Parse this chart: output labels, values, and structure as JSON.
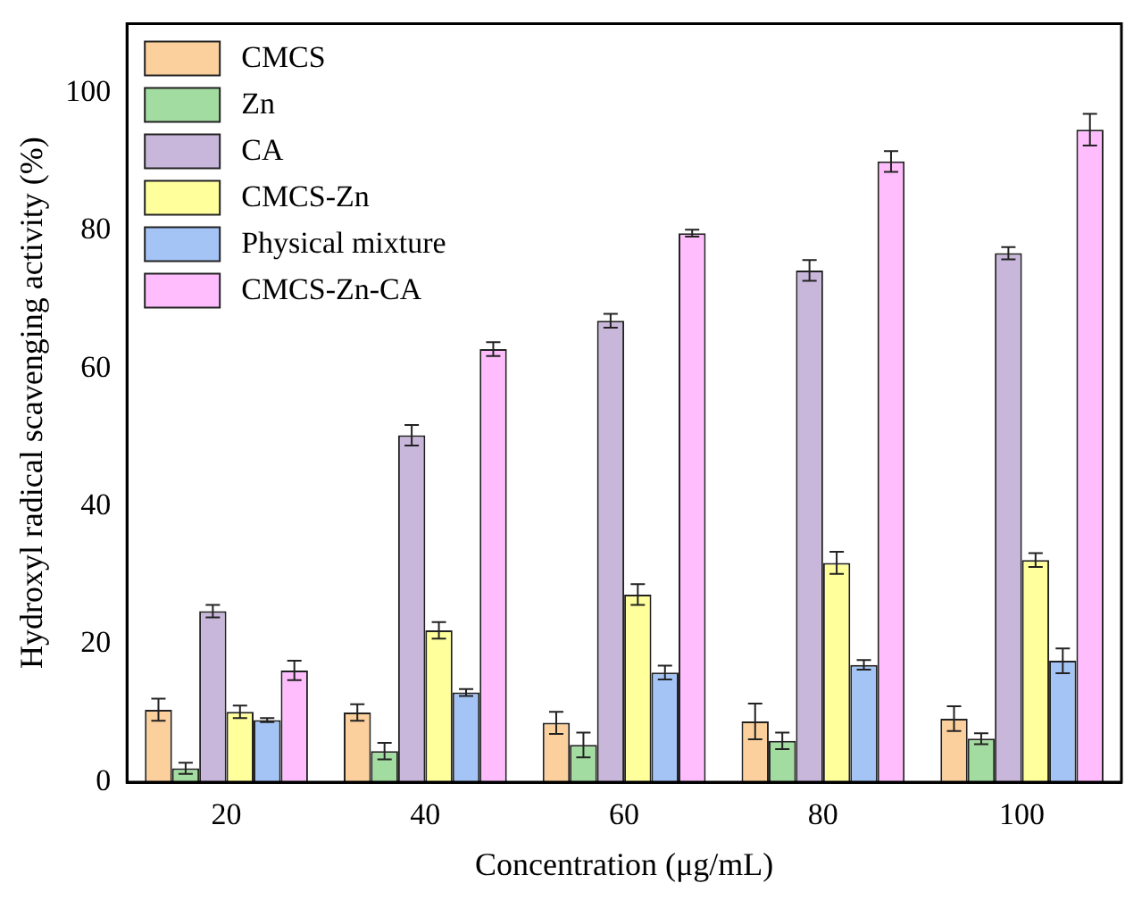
{
  "chart_data": {
    "type": "bar",
    "xlabel": "Concentration (μg/mL)",
    "ylabel": "Hydroxyl radical scavenging activity (%)",
    "categories": [
      "20",
      "40",
      "60",
      "80",
      "100"
    ],
    "series": [
      {
        "name": "CMCS",
        "color": "#fcd09c",
        "values": [
          10.5,
          10.1,
          8.6,
          8.8,
          9.2
        ],
        "errors": [
          1.6,
          1.2,
          1.6,
          2.6,
          1.8
        ]
      },
      {
        "name": "Zn",
        "color": "#a3dca0",
        "values": [
          2.0,
          4.5,
          5.4,
          6.0,
          6.3
        ],
        "errors": [
          0.8,
          1.2,
          1.8,
          1.2,
          0.8
        ]
      },
      {
        "name": "CA",
        "color": "#c9b7db",
        "values": [
          24.8,
          50.3,
          66.9,
          74.2,
          76.7
        ],
        "errors": [
          0.9,
          1.5,
          1.0,
          1.5,
          0.9
        ]
      },
      {
        "name": "CMCS-Zn",
        "color": "#ffff9c",
        "values": [
          10.2,
          22.0,
          27.2,
          31.8,
          32.2
        ],
        "errors": [
          0.9,
          1.2,
          1.5,
          1.6,
          1.0
        ]
      },
      {
        "name": "Physical mixture",
        "color": "#a4c4f6",
        "values": [
          9.0,
          13.0,
          15.9,
          17.0,
          17.6
        ],
        "errors": [
          0.3,
          0.5,
          1.0,
          0.7,
          1.8
        ]
      },
      {
        "name": "CMCS-Zn-CA",
        "color": "#ffbdfe",
        "values": [
          16.2,
          62.8,
          79.6,
          90.0,
          94.6
        ],
        "errors": [
          1.4,
          1.0,
          0.5,
          1.5,
          2.3
        ]
      }
    ],
    "ylim": [
      0,
      110
    ],
    "yticks": [
      0,
      20,
      40,
      60,
      80,
      100
    ],
    "grid": false,
    "legend": "top left"
  }
}
